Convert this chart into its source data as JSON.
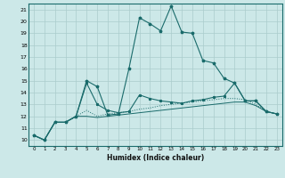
{
  "title": "",
  "xlabel": "Humidex (Indice chaleur)",
  "xlim": [
    -0.5,
    23.5
  ],
  "ylim": [
    9.5,
    21.5
  ],
  "yticks": [
    10,
    11,
    12,
    13,
    14,
    15,
    16,
    17,
    18,
    19,
    20,
    21
  ],
  "xticks": [
    0,
    1,
    2,
    3,
    4,
    5,
    6,
    7,
    8,
    9,
    10,
    11,
    12,
    13,
    14,
    15,
    16,
    17,
    18,
    19,
    20,
    21,
    22,
    23
  ],
  "bg_color": "#cce8e8",
  "grid_color": "#aacccc",
  "line_color": "#1a6b6b",
  "line1_x": [
    0,
    1,
    2,
    3,
    4,
    5,
    6,
    7,
    8,
    9,
    10,
    11,
    12,
    13,
    14,
    15,
    16,
    17,
    18,
    19,
    20,
    21,
    22,
    23
  ],
  "line1_y": [
    10.4,
    10.0,
    11.5,
    11.5,
    12.0,
    15.0,
    14.5,
    12.1,
    12.2,
    16.0,
    20.3,
    19.8,
    19.2,
    21.3,
    19.1,
    19.0,
    16.7,
    16.5,
    15.2,
    14.8,
    13.3,
    13.3,
    12.4,
    12.2
  ],
  "line2_x": [
    0,
    1,
    2,
    3,
    4,
    5,
    6,
    7,
    8,
    9,
    10,
    11,
    12,
    13,
    14,
    15,
    16,
    17,
    18,
    19,
    20,
    21,
    22,
    23
  ],
  "line2_y": [
    10.4,
    10.0,
    11.5,
    11.5,
    12.0,
    14.8,
    13.0,
    12.5,
    12.3,
    12.4,
    13.8,
    13.5,
    13.3,
    13.2,
    13.1,
    13.3,
    13.4,
    13.6,
    13.7,
    14.8,
    13.3,
    13.3,
    12.4,
    12.2
  ],
  "line3_x": [
    0,
    1,
    2,
    3,
    4,
    5,
    6,
    7,
    8,
    9,
    10,
    11,
    12,
    13,
    14,
    15,
    16,
    17,
    18,
    19,
    20,
    21,
    22,
    23
  ],
  "line3_y": [
    10.4,
    10.0,
    11.5,
    11.5,
    12.0,
    12.5,
    12.0,
    12.2,
    12.3,
    12.4,
    12.6,
    12.7,
    12.9,
    13.0,
    13.1,
    13.2,
    13.3,
    13.4,
    13.5,
    13.5,
    13.4,
    13.0,
    12.4,
    12.2
  ],
  "line4_x": [
    0,
    1,
    2,
    3,
    4,
    5,
    6,
    7,
    8,
    9,
    10,
    11,
    12,
    13,
    14,
    15,
    16,
    17,
    18,
    19,
    20,
    21,
    22,
    23
  ],
  "line4_y": [
    10.4,
    10.0,
    11.5,
    11.5,
    12.0,
    12.0,
    11.9,
    12.0,
    12.1,
    12.2,
    12.3,
    12.4,
    12.5,
    12.6,
    12.7,
    12.8,
    12.9,
    13.0,
    13.1,
    13.2,
    13.2,
    12.9,
    12.4,
    12.2
  ]
}
